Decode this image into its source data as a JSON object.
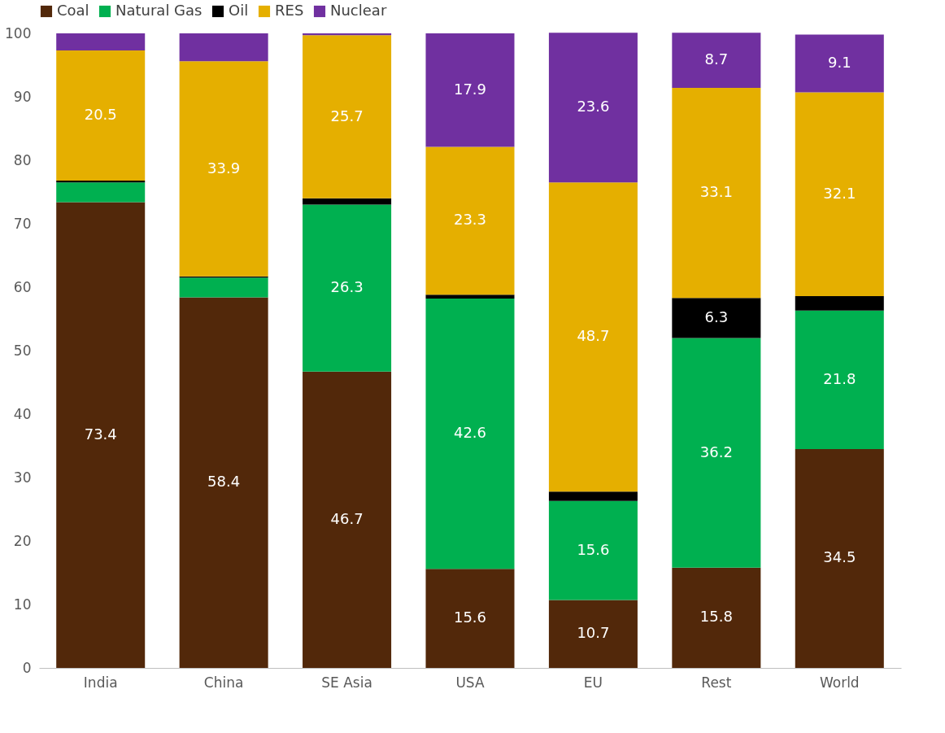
{
  "chart_data": {
    "type": "bar",
    "stacked": true,
    "categories": [
      "India",
      "China",
      "SE Asia",
      "USA",
      "EU",
      "Rest",
      "World"
    ],
    "series": [
      {
        "name": "Coal",
        "color": "#52280a",
        "values": [
          73.4,
          58.4,
          46.7,
          15.6,
          10.7,
          15.8,
          34.5
        ],
        "value_labels": [
          "73.4",
          "58.4",
          "46.7",
          "15.6",
          "10.7",
          "15.8",
          "34.5"
        ]
      },
      {
        "name": "Natural Gas",
        "color": "#00b050",
        "values": [
          3.1,
          3.1,
          26.3,
          42.6,
          15.6,
          36.2,
          21.8
        ],
        "value_labels": [
          null,
          null,
          "26.3",
          "42.6",
          "15.6",
          "36.2",
          "21.8"
        ]
      },
      {
        "name": "Oil",
        "color": "#000000",
        "values": [
          0.3,
          0.2,
          1.0,
          0.6,
          1.5,
          6.3,
          2.3
        ],
        "value_labels": [
          null,
          null,
          null,
          null,
          null,
          "6.3",
          null
        ]
      },
      {
        "name": "RES",
        "color": "#e5af00",
        "values": [
          20.5,
          33.9,
          25.7,
          23.3,
          48.7,
          33.1,
          32.1
        ],
        "value_labels": [
          "20.5",
          "33.9",
          "25.7",
          "23.3",
          "48.7",
          "33.1",
          "32.1"
        ]
      },
      {
        "name": "Nuclear",
        "color": "#7030a0",
        "values": [
          2.7,
          4.4,
          0.3,
          17.9,
          23.6,
          8.7,
          9.1
        ],
        "value_labels": [
          null,
          null,
          null,
          "17.9",
          "23.6",
          "8.7",
          "9.1"
        ]
      }
    ],
    "ylim": [
      0,
      100
    ],
    "yticks": [
      0,
      10,
      20,
      30,
      40,
      50,
      60,
      70,
      80,
      90,
      100
    ],
    "grid": false,
    "legend": "top"
  }
}
